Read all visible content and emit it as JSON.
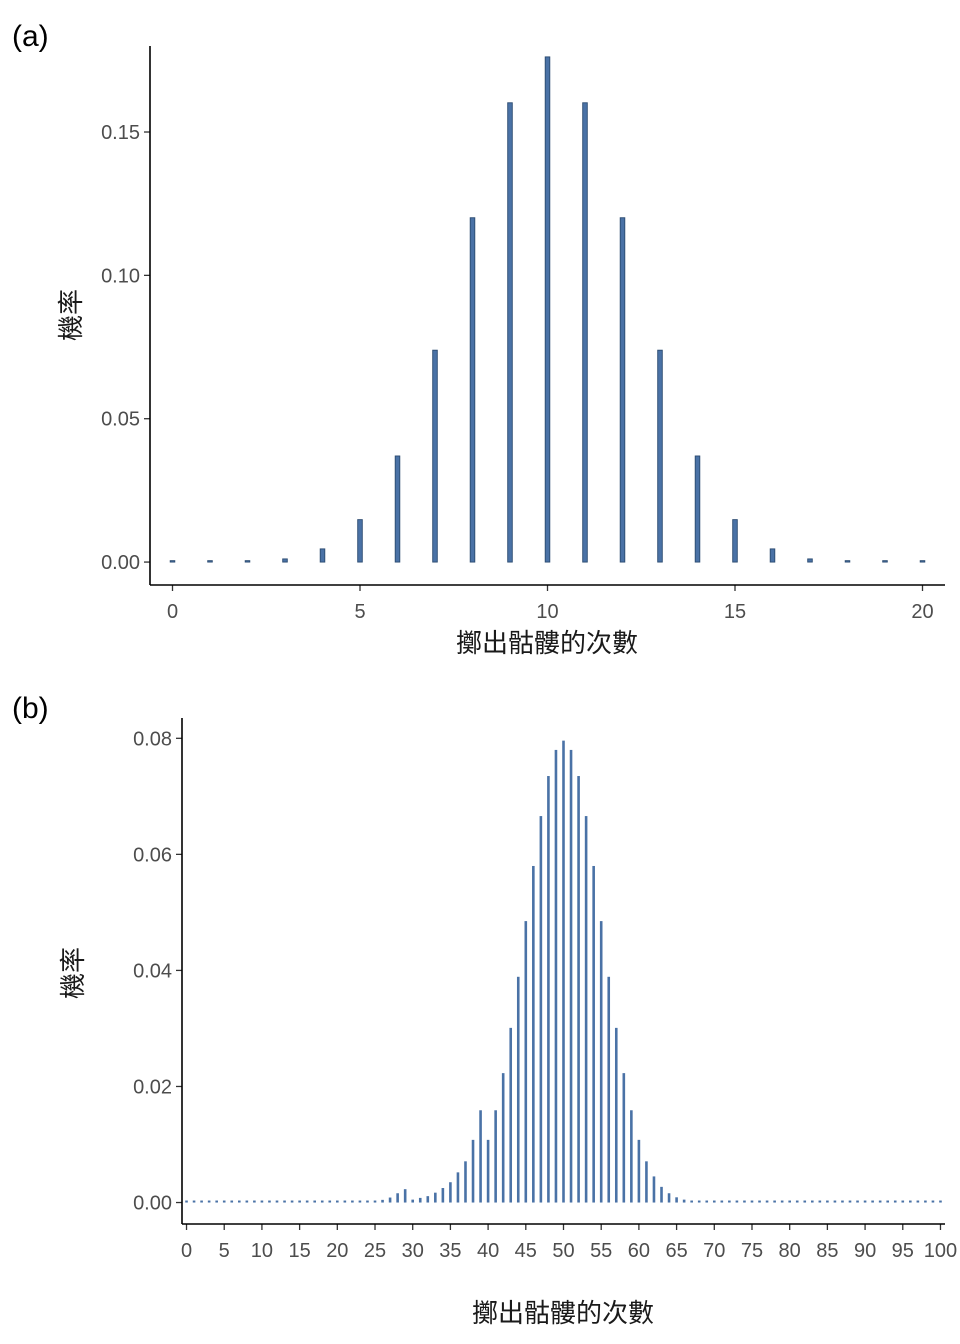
{
  "chart_data": [
    {
      "panel_label": "(a)",
      "type": "bar",
      "xlabel": "擲出骷髏的次數",
      "ylabel": "機率",
      "xlim": [
        -0.6,
        20.6
      ],
      "ylim": [
        -0.008,
        0.18
      ],
      "x_ticks": [
        0,
        5,
        10,
        15,
        20
      ],
      "y_ticks": [
        0.0,
        0.05,
        0.1,
        0.15
      ],
      "y_tick_labels": [
        "0.00",
        "0.05",
        "0.10",
        "0.15"
      ],
      "bar_color": "#4a72a6",
      "bar_edge_color": "#2a4a70",
      "x": [
        0,
        1,
        2,
        3,
        4,
        5,
        6,
        7,
        8,
        9,
        10,
        11,
        12,
        13,
        14,
        15,
        16,
        17,
        18,
        19,
        20
      ],
      "values": [
        1e-06,
        2e-05,
        0.0002,
        0.0011,
        0.0046,
        0.0148,
        0.037,
        0.0739,
        0.1201,
        0.1602,
        0.1762,
        0.1602,
        0.1201,
        0.0739,
        0.037,
        0.0148,
        0.0046,
        0.0011,
        0.0002,
        2e-05,
        1e-06
      ]
    },
    {
      "panel_label": "(b)",
      "type": "bar",
      "xlabel": "擲出骷髏的次數",
      "ylabel": "機率",
      "xlim": [
        -0.6,
        100.6
      ],
      "ylim": [
        -0.0037,
        0.0835
      ],
      "x_ticks": [
        0,
        5,
        10,
        15,
        20,
        25,
        30,
        35,
        40,
        45,
        50,
        55,
        60,
        65,
        70,
        75,
        80,
        85,
        90,
        95,
        100
      ],
      "y_ticks": [
        0.0,
        0.02,
        0.04,
        0.06,
        0.08
      ],
      "y_tick_labels": [
        "0.00",
        "0.02",
        "0.04",
        "0.06",
        "0.08"
      ],
      "bar_color": "#4a72a6",
      "x": [
        0,
        1,
        2,
        3,
        4,
        5,
        6,
        7,
        8,
        9,
        10,
        11,
        12,
        13,
        14,
        15,
        16,
        17,
        18,
        19,
        20,
        21,
        22,
        23,
        24,
        25,
        26,
        27,
        28,
        29,
        30,
        31,
        32,
        33,
        34,
        35,
        36,
        37,
        38,
        39,
        40,
        41,
        42,
        43,
        44,
        45,
        46,
        47,
        48,
        49,
        50,
        51,
        52,
        53,
        54,
        55,
        56,
        57,
        58,
        59,
        60,
        61,
        62,
        63,
        64,
        65,
        66,
        67,
        68,
        69,
        70,
        71,
        72,
        73,
        74,
        75,
        76,
        77,
        78,
        79,
        80,
        81,
        82,
        83,
        84,
        85,
        86,
        87,
        88,
        89,
        90,
        91,
        92,
        93,
        94,
        95,
        96,
        97,
        98,
        99,
        100
      ],
      "values": [
        0,
        0,
        0,
        0,
        0,
        0,
        0,
        0,
        0,
        0,
        0,
        0,
        0,
        0,
        0,
        0,
        0,
        0,
        0,
        0,
        4e-06,
        1e-05,
        2e-05,
        5e-05,
        0.00011,
        0.00023,
        0.00046,
        0.00086,
        0.0016,
        0.0023,
        0.0005,
        0.0008,
        0.0011,
        0.0017,
        0.0025,
        0.0035,
        0.0052,
        0.0071,
        0.0108,
        0.0159,
        0.0108,
        0.0159,
        0.0223,
        0.0301,
        0.0389,
        0.0485,
        0.058,
        0.0666,
        0.0735,
        0.078,
        0.0796,
        0.078,
        0.0735,
        0.0666,
        0.058,
        0.0485,
        0.0389,
        0.0301,
        0.0223,
        0.0159,
        0.0108,
        0.0071,
        0.0045,
        0.0027,
        0.0016,
        0.0009,
        0.0005,
        0.00023,
        0.00011,
        5e-05,
        2e-05,
        1e-05,
        4e-06,
        0,
        0,
        0,
        0,
        0,
        0,
        0,
        0,
        0,
        0,
        0,
        0,
        0,
        0,
        0,
        0,
        0,
        0,
        0,
        0,
        0,
        0,
        0,
        0,
        0,
        0,
        0,
        0
      ]
    }
  ]
}
